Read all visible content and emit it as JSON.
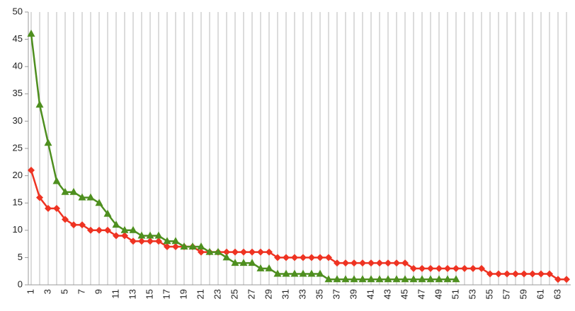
{
  "chart_data": {
    "type": "line",
    "categories": [
      1,
      null,
      3,
      null,
      5,
      null,
      7,
      null,
      9,
      null,
      11,
      null,
      13,
      null,
      15,
      null,
      17,
      null,
      19,
      null,
      21,
      null,
      23,
      null,
      25,
      null,
      27,
      null,
      29,
      null,
      31,
      null,
      33,
      null,
      35,
      null,
      37,
      null,
      39,
      null,
      41,
      null,
      43,
      null,
      45,
      null,
      47,
      null,
      49,
      null,
      51,
      null,
      53,
      null,
      55,
      null,
      57,
      null,
      59,
      null,
      61,
      null,
      63,
      null
    ],
    "series": [
      {
        "color": "#ee3322",
        "marker": "diamond",
        "values": [
          21,
          16,
          14,
          14,
          12,
          11,
          11,
          10,
          10,
          10,
          9,
          9,
          8,
          8,
          8,
          8,
          7,
          7,
          7,
          7,
          6,
          6,
          6,
          6,
          6,
          6,
          6,
          6,
          6,
          5,
          5,
          5,
          5,
          5,
          5,
          5,
          4,
          4,
          4,
          4,
          4,
          4,
          4,
          4,
          4,
          3,
          3,
          3,
          3,
          3,
          3,
          3,
          3,
          3,
          2,
          2,
          2,
          2,
          2,
          2,
          2,
          2,
          1,
          1
        ]
      },
      {
        "color": "#4e8f1f",
        "marker": "triangle",
        "values": [
          46,
          33,
          26,
          19,
          17,
          17,
          16,
          16,
          15,
          13,
          11,
          10,
          10,
          9,
          9,
          9,
          8,
          8,
          7,
          7,
          7,
          6,
          6,
          5,
          4,
          4,
          4,
          3,
          3,
          2,
          2,
          2,
          2,
          2,
          2,
          1,
          1,
          1,
          1,
          1,
          1,
          1,
          1,
          1,
          1,
          1,
          1,
          1,
          1,
          1,
          1,
          null,
          null,
          null,
          null,
          null,
          null,
          null,
          null,
          null,
          null,
          null,
          null,
          null
        ]
      }
    ],
    "ylim": [
      0,
      50
    ],
    "yticks": [
      0,
      5,
      10,
      15,
      20,
      25,
      30,
      35,
      40,
      45,
      50
    ],
    "grid": "x"
  }
}
